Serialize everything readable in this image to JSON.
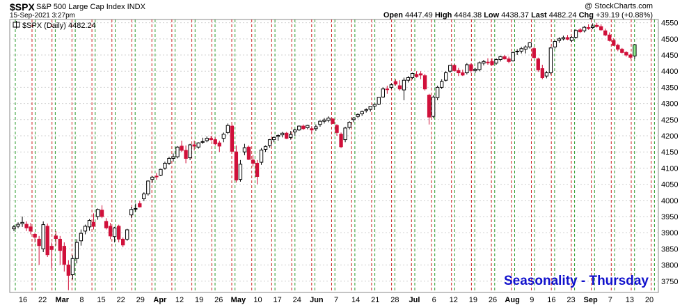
{
  "header": {
    "symbol": "$SPX",
    "description": "S&P 500 Large Cap Index INDX",
    "copyright": "@ StockCharts.com",
    "datetime": "15-Sep-2021 3:27pm",
    "open_label": "Open",
    "open_value": "4447.49",
    "high_label": "High",
    "high_value": "4484.38",
    "low_label": "Low",
    "low_value": "4438.37",
    "last_label": "Last",
    "last_value": "4482.24",
    "chg_label": "Chg",
    "chg_value": "+39.19 (+0.88%)"
  },
  "legend": {
    "label": "$SPX (Daily) 4482.24"
  },
  "watermark": "Seasonality - Thursday",
  "colors": {
    "up": "#ffffff",
    "down": "#d0103a",
    "up_outline": "#000000",
    "last_up": "#90ee90",
    "green_line": "#2a9a2a",
    "red_line": "#cc2222",
    "watermark": "#1010cc",
    "grid": "#d0d0d0"
  },
  "chart_data": {
    "type": "candlestick",
    "title": "$SPX",
    "ylim": [
      3715,
      4560
    ],
    "yticks": [
      3750,
      3800,
      3850,
      3900,
      3950,
      4000,
      4050,
      4100,
      4150,
      4200,
      4250,
      4300,
      4350,
      4400,
      4450,
      4500,
      4550
    ],
    "xticks": [
      {
        "label": "16",
        "bold": false
      },
      {
        "label": "22",
        "bold": false
      },
      {
        "label": "Mar",
        "bold": true
      },
      {
        "label": "8",
        "bold": false
      },
      {
        "label": "15",
        "bold": false
      },
      {
        "label": "22",
        "bold": false
      },
      {
        "label": "29",
        "bold": false
      },
      {
        "label": "Apr",
        "bold": true
      },
      {
        "label": "12",
        "bold": false
      },
      {
        "label": "19",
        "bold": false
      },
      {
        "label": "26",
        "bold": false
      },
      {
        "label": "May",
        "bold": true
      },
      {
        "label": "10",
        "bold": false
      },
      {
        "label": "17",
        "bold": false
      },
      {
        "label": "24",
        "bold": false
      },
      {
        "label": "Jun",
        "bold": true
      },
      {
        "label": "7",
        "bold": false
      },
      {
        "label": "14",
        "bold": false
      },
      {
        "label": "21",
        "bold": false
      },
      {
        "label": "28",
        "bold": false
      },
      {
        "label": "Jul",
        "bold": true
      },
      {
        "label": "6",
        "bold": false
      },
      {
        "label": "12",
        "bold": false
      },
      {
        "label": "19",
        "bold": false
      },
      {
        "label": "26",
        "bold": false
      },
      {
        "label": "Aug",
        "bold": true
      },
      {
        "label": "9",
        "bold": false
      },
      {
        "label": "16",
        "bold": false
      },
      {
        "label": "23",
        "bold": false
      },
      {
        "label": "Sep",
        "bold": true
      },
      {
        "label": "7",
        "bold": false
      },
      {
        "label": "13",
        "bold": false
      },
      {
        "label": "20",
        "bold": false
      }
    ],
    "start_date": "2021-02-12",
    "series": [
      {
        "name": "$SPX (Daily)",
        "ohlc": [
          [
            3912,
            3924,
            3905,
            3918
          ],
          [
            3920,
            3932,
            3914,
            3926
          ],
          [
            3928,
            3950,
            3918,
            3932
          ],
          [
            3926,
            3935,
            3905,
            3915
          ],
          [
            3918,
            3930,
            3895,
            3905
          ],
          [
            3895,
            3900,
            3870,
            3886
          ],
          [
            3880,
            3890,
            3800,
            3860
          ],
          [
            3850,
            3935,
            3840,
            3925
          ],
          [
            3920,
            3928,
            3825,
            3832
          ],
          [
            3858,
            3870,
            3790,
            3848
          ],
          [
            3890,
            3905,
            3860,
            3882
          ],
          [
            3880,
            3890,
            3800,
            3845
          ],
          [
            3858,
            3870,
            3780,
            3802
          ],
          [
            3800,
            3815,
            3722,
            3768
          ],
          [
            3770,
            3830,
            3755,
            3820
          ],
          [
            3820,
            3880,
            3805,
            3870
          ],
          [
            3875,
            3910,
            3860,
            3898
          ],
          [
            3905,
            3925,
            3895,
            3920
          ],
          [
            3918,
            3942,
            3906,
            3938
          ],
          [
            3932,
            3960,
            3910,
            3920
          ],
          [
            3950,
            3975,
            3940,
            3972
          ],
          [
            3970,
            3985,
            3945,
            3950
          ],
          [
            3935,
            3945,
            3910,
            3915
          ],
          [
            3920,
            3930,
            3880,
            3890
          ],
          [
            3888,
            3918,
            3870,
            3915
          ],
          [
            3920,
            3925,
            3870,
            3880
          ],
          [
            3880,
            3885,
            3855,
            3862
          ],
          [
            3880,
            3912,
            3875,
            3909
          ],
          [
            3955,
            3980,
            3945,
            3972
          ],
          [
            3975,
            3990,
            3965,
            3975
          ],
          [
            3990,
            3998,
            3978,
            3980
          ],
          [
            4005,
            4025,
            3998,
            4020
          ],
          [
            4020,
            4062,
            4015,
            4060
          ],
          [
            4065,
            4075,
            4055,
            4072
          ],
          [
            4075,
            4085,
            4064,
            4073
          ],
          [
            4078,
            4098,
            4075,
            4096
          ],
          [
            4100,
            4120,
            4095,
            4115
          ],
          [
            4115,
            4135,
            4110,
            4130
          ],
          [
            4130,
            4145,
            4120,
            4135
          ],
          [
            4135,
            4168,
            4130,
            4165
          ],
          [
            4168,
            4185,
            4150,
            4155
          ],
          [
            4155,
            4170,
            4115,
            4130
          ],
          [
            4132,
            4175,
            4125,
            4172
          ],
          [
            4172,
            4185,
            4155,
            4168
          ],
          [
            4165,
            4180,
            4160,
            4178
          ],
          [
            4180,
            4194,
            4175,
            4182
          ],
          [
            4185,
            4198,
            4180,
            4192
          ],
          [
            4192,
            4200,
            4185,
            4188
          ],
          [
            4188,
            4195,
            4170,
            4175
          ],
          [
            4178,
            4185,
            4150,
            4168
          ],
          [
            4192,
            4210,
            4180,
            4205
          ],
          [
            4210,
            4238,
            4205,
            4232
          ],
          [
            4230,
            4235,
            4150,
            4152
          ],
          [
            4150,
            4170,
            4055,
            4063
          ],
          [
            4065,
            4125,
            4058,
            4112
          ],
          [
            4150,
            4175,
            4140,
            4163
          ],
          [
            4165,
            4170,
            4125,
            4127
          ],
          [
            4125,
            4140,
            4105,
            4115
          ],
          [
            4115,
            4125,
            4050,
            4074
          ],
          [
            4118,
            4162,
            4110,
            4156
          ],
          [
            4158,
            4170,
            4150,
            4167
          ],
          [
            4170,
            4190,
            4163,
            4188
          ],
          [
            4188,
            4198,
            4180,
            4195
          ],
          [
            4198,
            4205,
            4185,
            4201
          ],
          [
            4203,
            4212,
            4195,
            4208
          ],
          [
            4208,
            4212,
            4190,
            4192
          ],
          [
            4195,
            4215,
            4188,
            4204
          ],
          [
            4212,
            4222,
            4200,
            4218
          ],
          [
            4218,
            4232,
            4215,
            4230
          ],
          [
            4230,
            4235,
            4218,
            4222
          ],
          [
            4225,
            4234,
            4220,
            4232
          ],
          [
            4222,
            4230,
            4208,
            4218
          ],
          [
            4222,
            4235,
            4215,
            4228
          ],
          [
            4235,
            4248,
            4228,
            4245
          ],
          [
            4245,
            4255,
            4238,
            4249
          ],
          [
            4248,
            4260,
            4242,
            4255
          ],
          [
            4252,
            4255,
            4236,
            4238
          ],
          [
            4232,
            4236,
            4200,
            4210
          ],
          [
            4205,
            4210,
            4162,
            4166
          ],
          [
            4188,
            4228,
            4180,
            4224
          ],
          [
            4226,
            4245,
            4220,
            4242
          ],
          [
            4250,
            4258,
            4242,
            4255
          ],
          [
            4260,
            4270,
            4255,
            4266
          ],
          [
            4268,
            4278,
            4262,
            4275
          ],
          [
            4278,
            4285,
            4272,
            4281
          ],
          [
            4282,
            4290,
            4275,
            4291
          ],
          [
            4292,
            4300,
            4280,
            4297
          ],
          [
            4298,
            4320,
            4295,
            4319
          ],
          [
            4320,
            4350,
            4318,
            4345
          ],
          [
            4345,
            4355,
            4330,
            4343
          ],
          [
            4350,
            4362,
            4345,
            4358
          ],
          [
            4368,
            4375,
            4355,
            4360
          ],
          [
            4355,
            4372,
            4340,
            4345
          ],
          [
            4342,
            4380,
            4310,
            4372
          ],
          [
            4372,
            4385,
            4365,
            4380
          ],
          [
            4380,
            4395,
            4375,
            4393
          ],
          [
            4390,
            4400,
            4380,
            4383
          ],
          [
            4392,
            4400,
            4375,
            4388
          ],
          [
            4386,
            4392,
            4340,
            4345
          ],
          [
            4326,
            4330,
            4235,
            4258
          ],
          [
            4260,
            4325,
            4255,
            4320
          ],
          [
            4318,
            4355,
            4310,
            4350
          ],
          [
            4350,
            4375,
            4345,
            4368
          ],
          [
            4372,
            4400,
            4368,
            4395
          ],
          [
            4400,
            4420,
            4395,
            4418
          ],
          [
            4418,
            4422,
            4398,
            4402
          ],
          [
            4402,
            4410,
            4385,
            4395
          ],
          [
            4395,
            4405,
            4385,
            4388
          ],
          [
            4395,
            4425,
            4390,
            4420
          ],
          [
            4420,
            4425,
            4395,
            4402
          ],
          [
            4402,
            4410,
            4395,
            4406
          ],
          [
            4405,
            4430,
            4400,
            4426
          ],
          [
            4425,
            4435,
            4418,
            4430
          ],
          [
            4428,
            4440,
            4420,
            4426
          ],
          [
            4430,
            4440,
            4418,
            4420
          ],
          [
            4425,
            4440,
            4420,
            4436
          ],
          [
            4436,
            4448,
            4430,
            4445
          ],
          [
            4445,
            4450,
            4436,
            4438
          ],
          [
            4438,
            4445,
            4425,
            4430
          ],
          [
            4432,
            4460,
            4430,
            4458
          ],
          [
            4460,
            4468,
            4450,
            4462
          ],
          [
            4462,
            4475,
            4455,
            4470
          ],
          [
            4468,
            4480,
            4455,
            4475
          ],
          [
            4475,
            4490,
            4470,
            4488
          ],
          [
            4470,
            4475,
            4440,
            4442
          ],
          [
            4438,
            4442,
            4398,
            4404
          ],
          [
            4408,
            4420,
            4375,
            4380
          ],
          [
            4385,
            4400,
            4378,
            4395
          ],
          [
            4395,
            4475,
            4390,
            4472
          ],
          [
            4475,
            4495,
            4470,
            4492
          ],
          [
            4495,
            4505,
            4488,
            4500
          ],
          [
            4500,
            4510,
            4495,
            4504
          ],
          [
            4504,
            4512,
            4496,
            4499
          ],
          [
            4495,
            4508,
            4490,
            4505
          ],
          [
            4505,
            4530,
            4500,
            4526
          ],
          [
            4528,
            4534,
            4518,
            4522
          ],
          [
            4525,
            4540,
            4520,
            4536
          ],
          [
            4535,
            4545,
            4528,
            4532
          ],
          [
            4535,
            4548,
            4530,
            4540
          ],
          [
            4542,
            4550,
            4535,
            4538
          ],
          [
            4538,
            4545,
            4525,
            4528
          ],
          [
            4525,
            4532,
            4508,
            4512
          ],
          [
            4512,
            4520,
            4492,
            4495
          ],
          [
            4495,
            4502,
            4478,
            4480
          ],
          [
            4480,
            4485,
            4462,
            4468
          ],
          [
            4468,
            4472,
            4455,
            4458
          ],
          [
            4458,
            4462,
            4445,
            4450
          ],
          [
            4450,
            4455,
            4438,
            4443
          ],
          [
            4447,
            4484,
            4438,
            4482
          ]
        ]
      }
    ]
  }
}
